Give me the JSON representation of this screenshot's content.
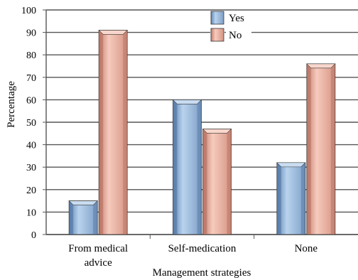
{
  "chart_data": {
    "type": "bar",
    "title": "",
    "xlabel": "Management strategies",
    "ylabel": "Percentage",
    "ylim": [
      0,
      100
    ],
    "yticks": [
      0,
      10,
      20,
      30,
      40,
      50,
      60,
      70,
      80,
      90,
      100
    ],
    "grid": true,
    "legend_position": "top-center",
    "categories": [
      {
        "lines": [
          "From medical",
          "advice"
        ]
      },
      {
        "lines": [
          "Self-medication"
        ]
      },
      {
        "lines": [
          "None"
        ]
      }
    ],
    "series": [
      {
        "name": "Yes",
        "color": "#8fb4dc",
        "values": [
          15,
          60,
          32
        ]
      },
      {
        "name": "No",
        "color": "#e9a898",
        "values": [
          91,
          47,
          76
        ]
      }
    ]
  }
}
